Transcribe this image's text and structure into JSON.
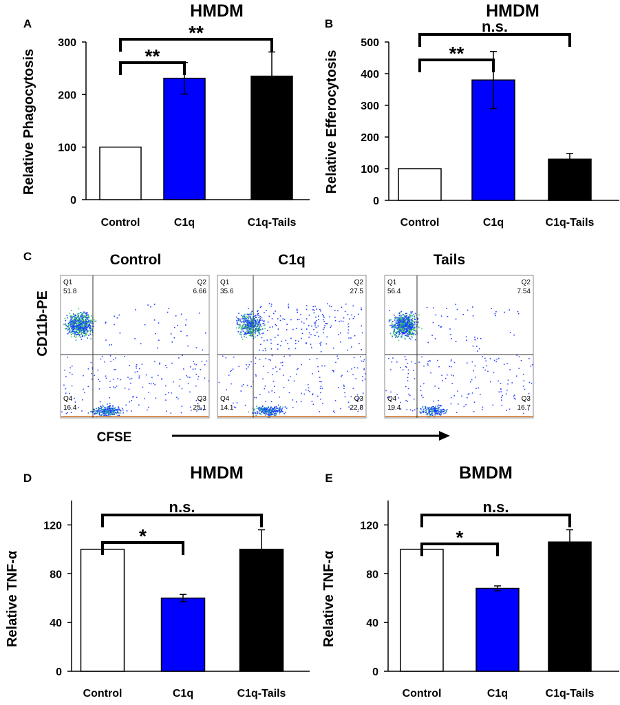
{
  "figure": {
    "x_axis_label": "CFSE",
    "y_axis_label": "CD11b-PE"
  },
  "chart_data": [
    {
      "panel": "A",
      "type": "bar",
      "title": "HMDM",
      "xlabel": "",
      "ylabel": "Relative Phagocytosis",
      "categories": [
        "Control",
        "C1q",
        "C1q-Tails"
      ],
      "values": [
        100,
        231,
        235
      ],
      "errors": [
        0,
        30,
        46
      ],
      "colors": [
        "#ffffff",
        "#0000ff",
        "#000000"
      ],
      "ylim": [
        0,
        300
      ],
      "yticks": [
        0,
        100,
        200,
        300
      ],
      "comparisons": [
        {
          "from": 0,
          "to": 1,
          "label": "**"
        },
        {
          "from": 0,
          "to": 2,
          "label": "**"
        }
      ]
    },
    {
      "panel": "B",
      "type": "bar",
      "title": "HMDM",
      "xlabel": "",
      "ylabel": "Relative Efferocytosis",
      "categories": [
        "Control",
        "C1q",
        "C1q-Tails"
      ],
      "values": [
        100,
        380,
        130
      ],
      "errors": [
        0,
        90,
        18
      ],
      "colors": [
        "#ffffff",
        "#0000ff",
        "#000000"
      ],
      "ylim": [
        0,
        500
      ],
      "yticks": [
        0,
        100,
        200,
        300,
        400,
        500
      ],
      "comparisons": [
        {
          "from": 0,
          "to": 1,
          "label": "**"
        },
        {
          "from": 0,
          "to": 2,
          "label": "n.s."
        }
      ]
    },
    {
      "panel": "C",
      "type": "scatter",
      "subtype": "flow-cytometry quadrant plots",
      "xlabel": "CFSE",
      "ylabel": "CD11b-PE",
      "plots": [
        {
          "title": "Control",
          "quadrants": {
            "Q1": "51.8",
            "Q2": "6.66",
            "Q3": "25.1",
            "Q4": "16.4"
          }
        },
        {
          "title": "C1q",
          "quadrants": {
            "Q1": "35.6",
            "Q2": "27.5",
            "Q3": "22.8",
            "Q4": "14.1"
          }
        },
        {
          "title": "Tails",
          "quadrants": {
            "Q1": "56.4",
            "Q2": "7.54",
            "Q3": "16.7",
            "Q4": "19.4"
          }
        }
      ]
    },
    {
      "panel": "D",
      "type": "bar",
      "title": "HMDM",
      "xlabel": "",
      "ylabel": "Relative TNF-α",
      "categories": [
        "Control",
        "C1q",
        "C1q-Tails"
      ],
      "values": [
        100,
        60,
        100
      ],
      "errors": [
        0,
        3,
        16
      ],
      "colors": [
        "#ffffff",
        "#0000ff",
        "#000000"
      ],
      "ylim": [
        0,
        140
      ],
      "yticks": [
        0,
        40,
        80,
        120
      ],
      "comparisons": [
        {
          "from": 0,
          "to": 1,
          "label": "*"
        },
        {
          "from": 0,
          "to": 2,
          "label": "n.s."
        }
      ]
    },
    {
      "panel": "E",
      "type": "bar",
      "title": "BMDM",
      "xlabel": "",
      "ylabel": "Relative TNF-α",
      "categories": [
        "Control",
        "C1q",
        "C1q-Tails"
      ],
      "values": [
        100,
        68,
        106
      ],
      "errors": [
        0,
        2,
        10
      ],
      "colors": [
        "#ffffff",
        "#0000ff",
        "#000000"
      ],
      "ylim": [
        0,
        140
      ],
      "yticks": [
        0,
        40,
        80,
        120
      ],
      "comparisons": [
        {
          "from": 0,
          "to": 1,
          "label": "*"
        },
        {
          "from": 0,
          "to": 2,
          "label": "n.s."
        }
      ]
    }
  ]
}
